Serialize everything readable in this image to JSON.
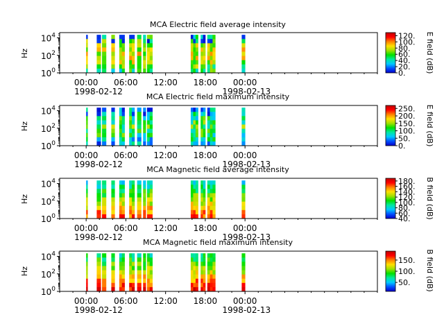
{
  "chart_data": [
    {
      "type": "heatmap",
      "title": "MCA  Electric field average intensity",
      "ylabel": "Hz",
      "colorbar_label": "E field (dB)",
      "colorbar_ticks": [
        "0.",
        "20.",
        "40.",
        "60.",
        "80.",
        "100.",
        "120."
      ],
      "colorbar_range": [
        0,
        130
      ],
      "y_tick_exponents": [
        "0",
        "2",
        "4"
      ],
      "ylim_log10": [
        0,
        4.6
      ],
      "xlim_hours": [
        -4,
        44
      ],
      "x_tick_hours": [
        0,
        6,
        12,
        18,
        24
      ],
      "x_tick_labels": [
        "00:00",
        "06:00",
        "12:00",
        "18:00",
        "00:00"
      ],
      "date_labels": [
        "1998-02-12",
        "1998-02-13"
      ],
      "field": "E",
      "stat": "avg"
    },
    {
      "type": "heatmap",
      "title": "MCA  Electric field maximum intensity",
      "ylabel": "Hz",
      "colorbar_label": "E field (dB)",
      "colorbar_ticks": [
        "0.",
        "50.",
        "100.",
        "150.",
        "200.",
        "250."
      ],
      "colorbar_range": [
        0,
        270
      ],
      "y_tick_exponents": [
        "0",
        "2",
        "4"
      ],
      "ylim_log10": [
        0,
        4.6
      ],
      "xlim_hours": [
        -4,
        44
      ],
      "x_tick_hours": [
        0,
        6,
        12,
        18,
        24
      ],
      "x_tick_labels": [
        "00:00",
        "06:00",
        "12:00",
        "18:00",
        "00:00"
      ],
      "date_labels": [
        "1998-02-12",
        "1998-02-13"
      ],
      "field": "E",
      "stat": "max"
    },
    {
      "type": "heatmap",
      "title": "MCA  Magnetic field average intensity",
      "ylabel": "Hz",
      "colorbar_label": "B field (dB)",
      "colorbar_ticks": [
        "40.",
        "60.",
        "80.",
        "100.",
        "120.",
        "140.",
        "160.",
        "180."
      ],
      "colorbar_range": [
        40,
        190
      ],
      "y_tick_exponents": [
        "0",
        "2",
        "4"
      ],
      "ylim_log10": [
        0,
        4.6
      ],
      "xlim_hours": [
        -4,
        44
      ],
      "x_tick_hours": [
        0,
        6,
        12,
        18,
        24
      ],
      "x_tick_labels": [
        "00:00",
        "06:00",
        "12:00",
        "18:00",
        "00:00"
      ],
      "date_labels": [
        "1998-02-12",
        "1998-02-13"
      ],
      "field": "B",
      "stat": "avg"
    },
    {
      "type": "heatmap",
      "title": "MCA  Magnetic field maximum intensity",
      "ylabel": "Hz",
      "colorbar_label": "B field (dB)",
      "colorbar_ticks": [
        "50.",
        "100.",
        "150."
      ],
      "colorbar_range": [
        10,
        190
      ],
      "y_tick_exponents": [
        "0",
        "2",
        "4"
      ],
      "ylim_log10": [
        0,
        4.6
      ],
      "xlim_hours": [
        -4,
        44
      ],
      "x_tick_hours": [
        0,
        6,
        12,
        18,
        24
      ],
      "x_tick_labels": [
        "00:00",
        "06:00",
        "12:00",
        "18:00",
        "00:00"
      ],
      "date_labels": [
        "1998-02-12",
        "1998-02-13"
      ],
      "field": "B",
      "stat": "max"
    }
  ],
  "data_segments_hours": [
    [
      0.0,
      0.1
    ],
    [
      1.6,
      2.2
    ],
    [
      2.4,
      3.0
    ],
    [
      3.8,
      4.3
    ],
    [
      5.0,
      5.8
    ],
    [
      6.5,
      7.3
    ],
    [
      7.7,
      8.3
    ],
    [
      8.6,
      9.0
    ],
    [
      9.2,
      10.0
    ],
    [
      15.8,
      16.9
    ],
    [
      17.3,
      18.0
    ],
    [
      18.3,
      19.5
    ],
    [
      23.5,
      24.0
    ]
  ],
  "colormap": [
    "#0000c8",
    "#0050ff",
    "#00c8ff",
    "#00e8a0",
    "#00e000",
    "#a0e000",
    "#ffe000",
    "#ff8000",
    "#ff0000",
    "#c00000"
  ]
}
